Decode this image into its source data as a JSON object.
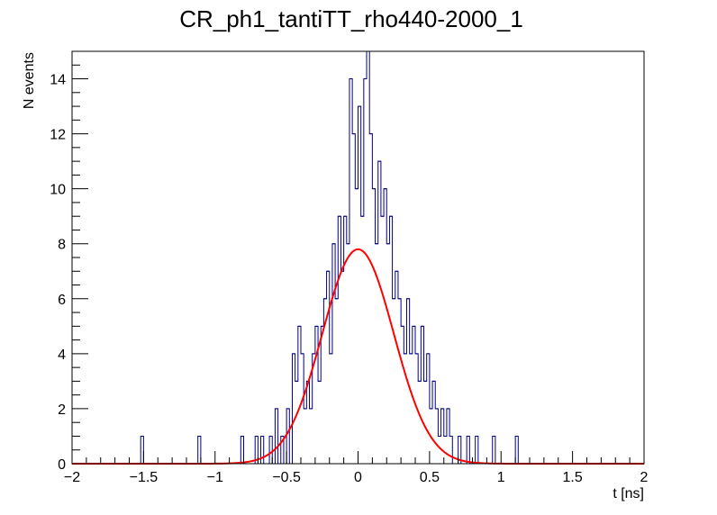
{
  "chart_data": {
    "type": "histogram",
    "title": "CR_ph1_tantiTT_rho440-2000_1",
    "xlabel": "t [ns]",
    "ylabel": "N events",
    "xlim": [
      -2,
      2
    ],
    "ylim": [
      0,
      15
    ],
    "grid": false,
    "x_ticks": [
      "−2",
      "−1.5",
      "−1",
      "−0.5",
      "0",
      "0.5",
      "1",
      "1.5",
      "2"
    ],
    "x_tick_values": [
      -2,
      -1.5,
      -1,
      -0.5,
      0,
      0.5,
      1,
      1.5,
      2
    ],
    "y_ticks": [
      "0",
      "2",
      "4",
      "6",
      "8",
      "10",
      "12",
      "14"
    ],
    "y_tick_values": [
      0,
      2,
      4,
      6,
      8,
      10,
      12,
      14
    ],
    "series": [
      {
        "kind": "histogram",
        "color": "#000080",
        "bin_width": 0.02,
        "bins": [
          {
            "x": -1.52,
            "y": 1
          },
          {
            "x": -1.12,
            "y": 1
          },
          {
            "x": -0.82,
            "y": 1
          },
          {
            "x": -0.72,
            "y": 1
          },
          {
            "x": -0.68,
            "y": 1
          },
          {
            "x": -0.62,
            "y": 1
          },
          {
            "x": -0.58,
            "y": 2
          },
          {
            "x": -0.54,
            "y": 1
          },
          {
            "x": -0.5,
            "y": 2
          },
          {
            "x": -0.46,
            "y": 4
          },
          {
            "x": -0.44,
            "y": 3
          },
          {
            "x": -0.42,
            "y": 5
          },
          {
            "x": -0.4,
            "y": 4
          },
          {
            "x": -0.38,
            "y": 2
          },
          {
            "x": -0.36,
            "y": 3
          },
          {
            "x": -0.34,
            "y": 2
          },
          {
            "x": -0.32,
            "y": 4
          },
          {
            "x": -0.3,
            "y": 5
          },
          {
            "x": -0.28,
            "y": 3
          },
          {
            "x": -0.26,
            "y": 5
          },
          {
            "x": -0.24,
            "y": 6
          },
          {
            "x": -0.22,
            "y": 7
          },
          {
            "x": -0.2,
            "y": 4
          },
          {
            "x": -0.18,
            "y": 8
          },
          {
            "x": -0.16,
            "y": 6
          },
          {
            "x": -0.14,
            "y": 9
          },
          {
            "x": -0.12,
            "y": 7
          },
          {
            "x": -0.1,
            "y": 9
          },
          {
            "x": -0.08,
            "y": 8
          },
          {
            "x": -0.06,
            "y": 14
          },
          {
            "x": -0.04,
            "y": 12
          },
          {
            "x": -0.02,
            "y": 10
          },
          {
            "x": 0.0,
            "y": 13
          },
          {
            "x": 0.02,
            "y": 9
          },
          {
            "x": 0.04,
            "y": 14
          },
          {
            "x": 0.06,
            "y": 15
          },
          {
            "x": 0.08,
            "y": 12
          },
          {
            "x": 0.1,
            "y": 10
          },
          {
            "x": 0.12,
            "y": 8
          },
          {
            "x": 0.14,
            "y": 11
          },
          {
            "x": 0.16,
            "y": 9
          },
          {
            "x": 0.18,
            "y": 10
          },
          {
            "x": 0.2,
            "y": 8
          },
          {
            "x": 0.22,
            "y": 9
          },
          {
            "x": 0.24,
            "y": 6
          },
          {
            "x": 0.26,
            "y": 7
          },
          {
            "x": 0.28,
            "y": 6
          },
          {
            "x": 0.3,
            "y": 5
          },
          {
            "x": 0.32,
            "y": 4
          },
          {
            "x": 0.34,
            "y": 6
          },
          {
            "x": 0.36,
            "y": 4
          },
          {
            "x": 0.38,
            "y": 5
          },
          {
            "x": 0.4,
            "y": 4
          },
          {
            "x": 0.42,
            "y": 3
          },
          {
            "x": 0.44,
            "y": 5
          },
          {
            "x": 0.46,
            "y": 3
          },
          {
            "x": 0.48,
            "y": 4
          },
          {
            "x": 0.5,
            "y": 2
          },
          {
            "x": 0.52,
            "y": 3
          },
          {
            "x": 0.54,
            "y": 2
          },
          {
            "x": 0.56,
            "y": 1
          },
          {
            "x": 0.58,
            "y": 2
          },
          {
            "x": 0.6,
            "y": 1
          },
          {
            "x": 0.62,
            "y": 2
          },
          {
            "x": 0.64,
            "y": 1
          },
          {
            "x": 0.7,
            "y": 1
          },
          {
            "x": 0.76,
            "y": 1
          },
          {
            "x": 0.82,
            "y": 1
          },
          {
            "x": 0.94,
            "y": 1
          },
          {
            "x": 1.1,
            "y": 1
          }
        ]
      },
      {
        "kind": "gaussian-fit",
        "color": "#ff0000",
        "amplitude": 7.8,
        "mean": 0.0,
        "sigma": 0.25
      }
    ]
  }
}
